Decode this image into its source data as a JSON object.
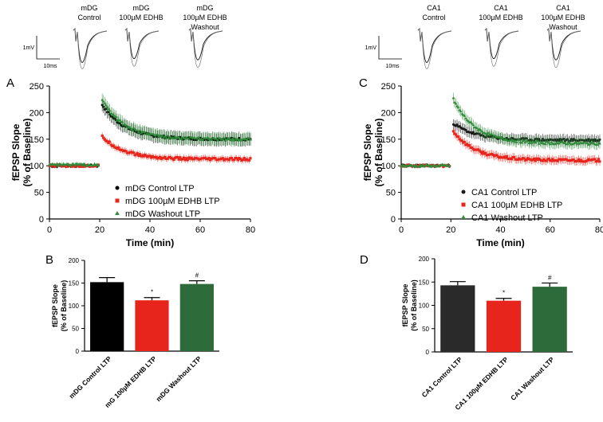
{
  "traces": {
    "left": {
      "scale_y": "1mV",
      "scale_x": "10ms",
      "labels": [
        [
          "mDG",
          "Control"
        ],
        [
          "mDG",
          "100µM EDHB"
        ],
        [
          "mDG",
          "100µM EDHB",
          "Washout"
        ]
      ]
    },
    "right": {
      "scale_y": "1mV",
      "scale_x": "10ms",
      "labels": [
        [
          "CA1",
          "Control"
        ],
        [
          "CA1",
          "100µM EDHB"
        ],
        [
          "CA1",
          "100µM EDHB",
          "Washout"
        ]
      ]
    }
  },
  "chart_data": [
    {
      "panel": "A",
      "type": "scatter",
      "xlabel": "Time (min)",
      "ylabel": [
        "fEPSP Slope",
        "(% of Baseline)"
      ],
      "xlim": [
        0,
        80
      ],
      "ylim": [
        0,
        250
      ],
      "xticks": [
        0,
        20,
        40,
        60,
        80
      ],
      "yticks": [
        0,
        50,
        100,
        150,
        200,
        250
      ],
      "legend_position": "bottom-right",
      "series": [
        {
          "name": "mDG Control LTP",
          "color": "#000000",
          "marker": "circle",
          "baseline": 100,
          "peak": 215,
          "plateau": 150,
          "error": 12
        },
        {
          "name": "mDG 100µM EDHB LTP",
          "color": "#e8251c",
          "marker": "square",
          "baseline": 100,
          "peak": 155,
          "plateau": 112,
          "error": 6
        },
        {
          "name": "mDG Washout LTP",
          "color": "#2e8b3a",
          "marker": "triangle",
          "baseline": 102,
          "peak": 225,
          "plateau": 150,
          "error": 12
        }
      ]
    },
    {
      "panel": "B",
      "type": "bar",
      "ylabel": [
        "fEPSP Slope",
        "(% of Baseline)"
      ],
      "ylim": [
        0,
        200
      ],
      "yticks": [
        0,
        50,
        100,
        150,
        200
      ],
      "categories": [
        "mDG Control LTP",
        "mG 100µM EDHB LTP",
        "mDG Washout LTP"
      ],
      "values": [
        152,
        112,
        148
      ],
      "errors": [
        10,
        6,
        7
      ],
      "colors": [
        "#000000",
        "#e8251c",
        "#2d6b3a"
      ],
      "annotations": [
        "",
        "*",
        "#"
      ]
    },
    {
      "panel": "C",
      "type": "scatter",
      "xlabel": "Time (min)",
      "ylabel": [
        "fEPSP Slope",
        "(% of Baseline)"
      ],
      "xlim": [
        0,
        80
      ],
      "ylim": [
        0,
        250
      ],
      "xticks": [
        0,
        20,
        40,
        60,
        80
      ],
      "yticks": [
        0,
        50,
        100,
        150,
        200,
        250
      ],
      "legend_position": "bottom-right",
      "series": [
        {
          "name": "CA1 Control LTP",
          "color": "#1a1a1a",
          "marker": "circle",
          "baseline": 100,
          "peak": 180,
          "plateau": 148,
          "error": 10
        },
        {
          "name": "CA1 100µM EDHB LTP",
          "color": "#e8251c",
          "marker": "square",
          "baseline": 100,
          "peak": 165,
          "plateau": 110,
          "error": 8
        },
        {
          "name": "CA1 Washout LTP",
          "color": "#2e8b3a",
          "marker": "triangle",
          "baseline": 100,
          "peak": 225,
          "plateau": 142,
          "error": 10
        }
      ]
    },
    {
      "panel": "D",
      "type": "bar",
      "ylabel": [
        "fEPSP Slope",
        "(% of Baseline)"
      ],
      "ylim": [
        0,
        200
      ],
      "yticks": [
        0,
        50,
        100,
        150,
        200
      ],
      "categories": [
        "CA1 Control LTP",
        "CA1 100µM EDHB LTP",
        "CA1 Washout LTP"
      ],
      "values": [
        143,
        110,
        140
      ],
      "errors": [
        8,
        5,
        8
      ],
      "colors": [
        "#2a2a2a",
        "#e8251c",
        "#2d6b3a"
      ],
      "annotations": [
        "",
        "*",
        "#"
      ]
    }
  ]
}
